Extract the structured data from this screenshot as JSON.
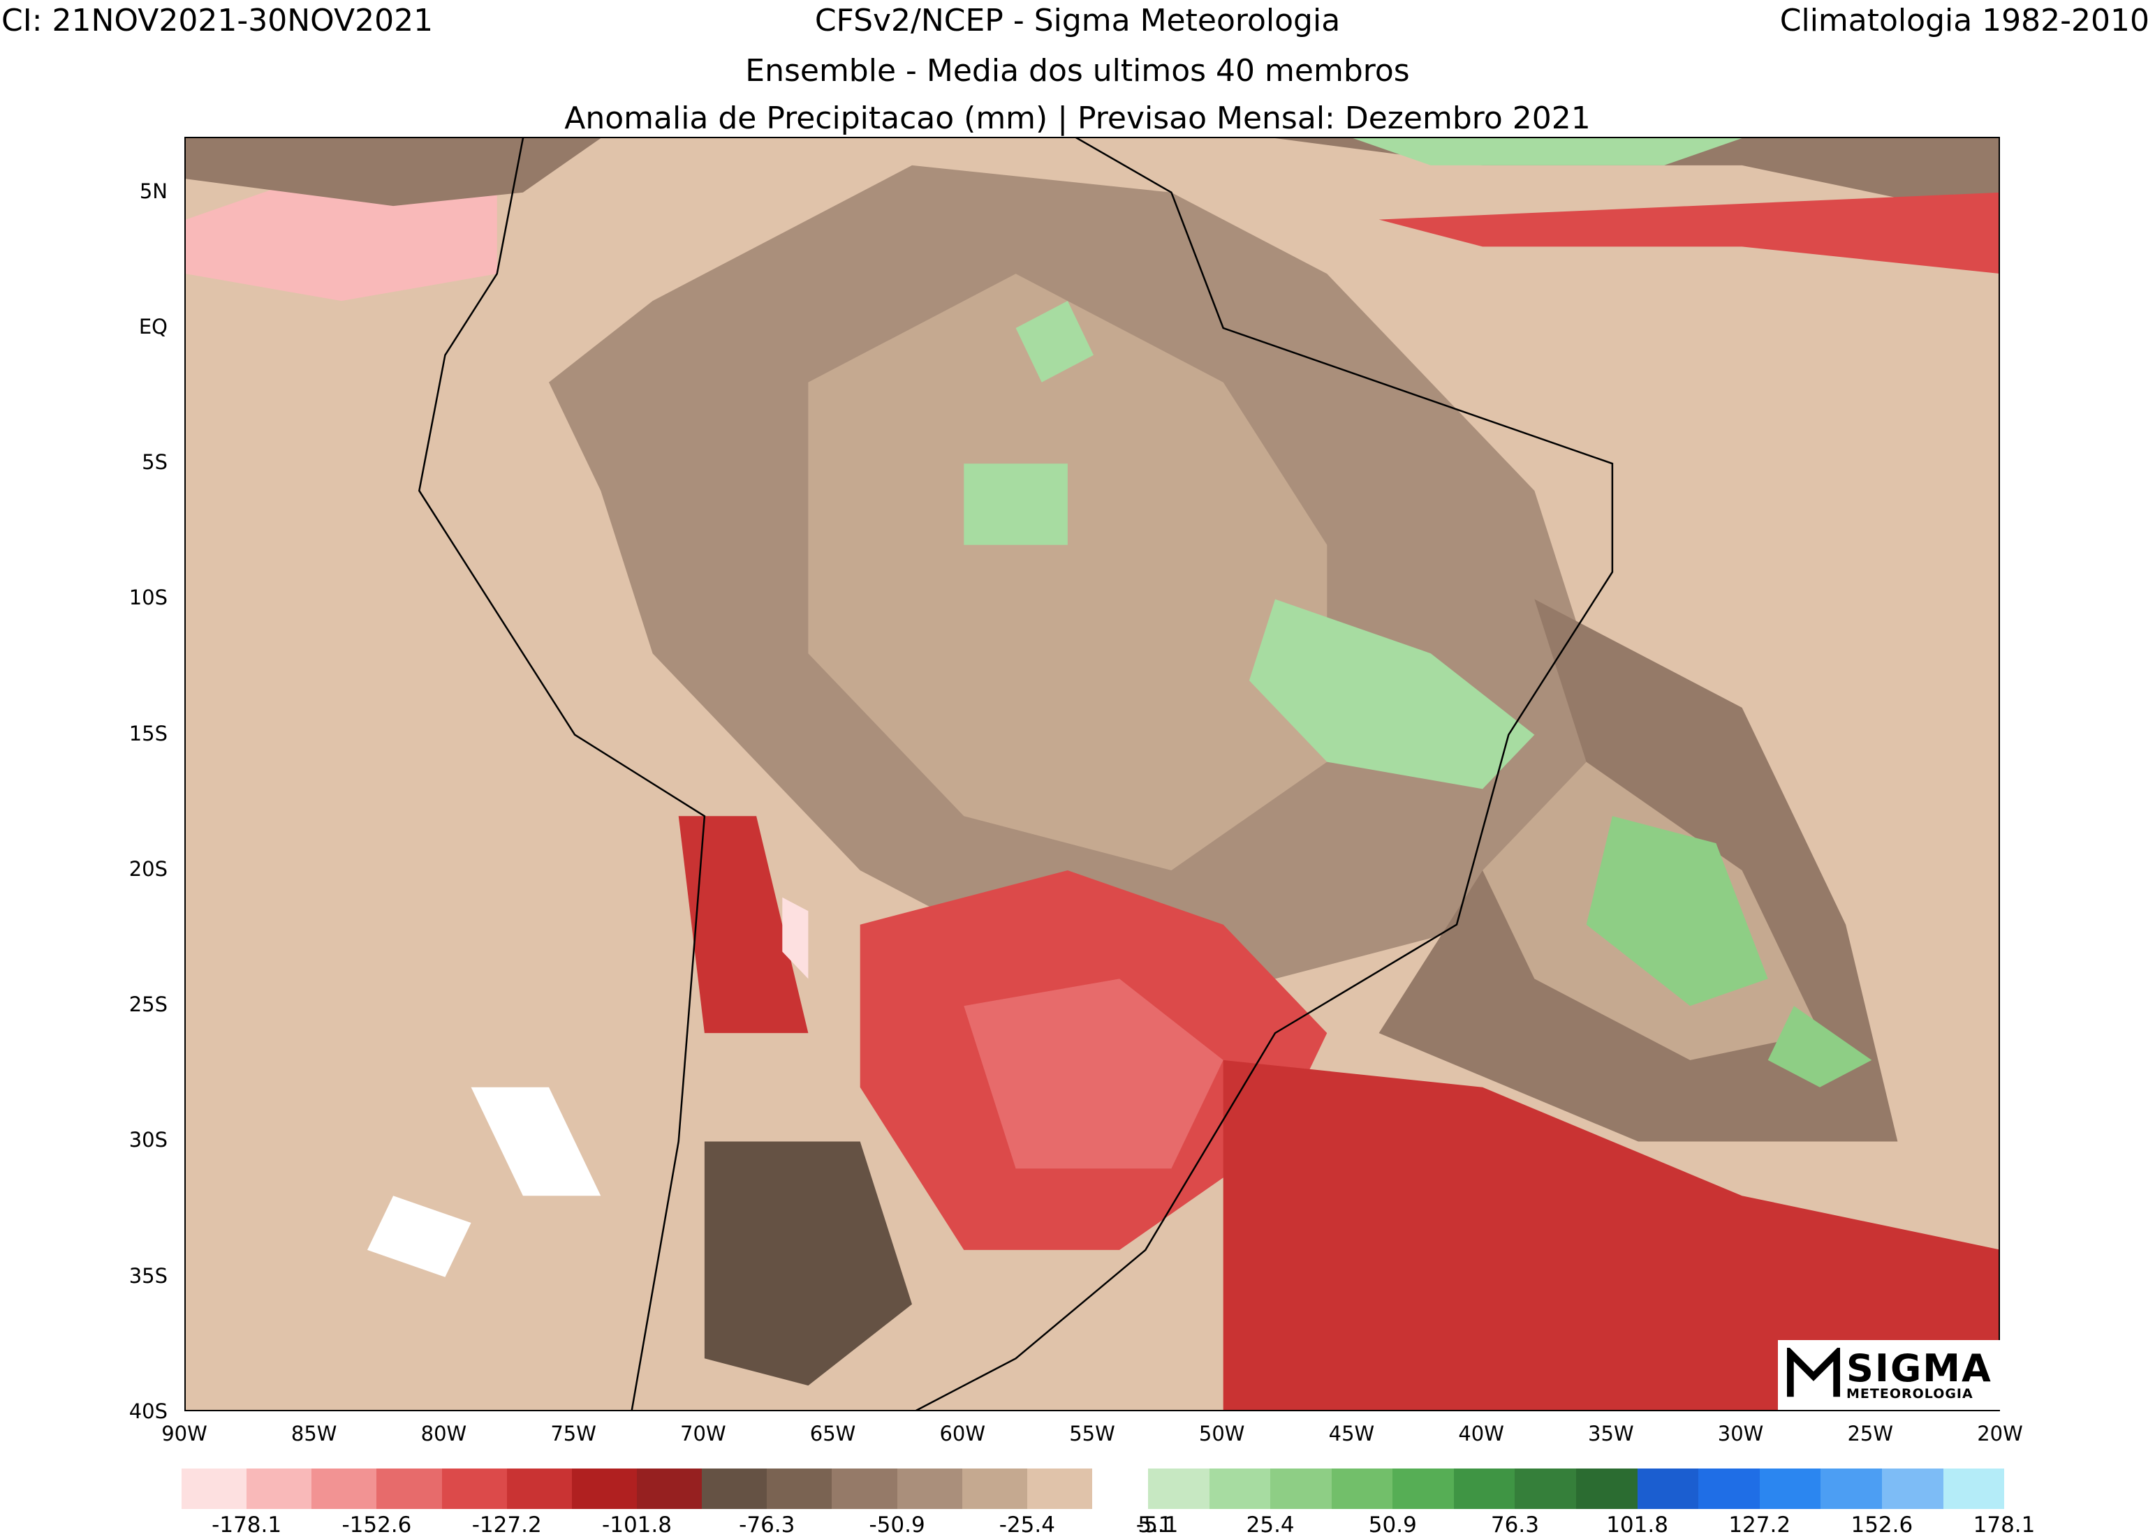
{
  "header": {
    "left": "CI: 21NOV2021-30NOV2021",
    "center": "CFSv2/NCEP - Sigma Meteorologia",
    "right": "Climatologia 1982-2010",
    "line2": "Ensemble - Media dos ultimos 40 membros",
    "line3": "Anomalia de Precipitacao (mm) | Previsao Mensal: Dezembro 2021"
  },
  "map": {
    "lon_range": [
      -90,
      -20
    ],
    "lat_range": [
      -40,
      7
    ],
    "lat_ticks": [
      "5N",
      "EQ",
      "5S",
      "10S",
      "15S",
      "20S",
      "25S",
      "30S",
      "35S",
      "40S"
    ],
    "lon_ticks": [
      "90W",
      "85W",
      "80W",
      "75W",
      "70W",
      "65W",
      "60W",
      "55W",
      "50W",
      "45W",
      "40W",
      "35W",
      "30W",
      "25W",
      "20W"
    ],
    "ocean_color": "#e0c3aa",
    "regions": [
      {
        "label": "dry-pacific-high",
        "class": 2,
        "points": [
          [
            -90,
            4
          ],
          [
            -84,
            6
          ],
          [
            -78,
            6.5
          ],
          [
            -78,
            2
          ],
          [
            -84,
            1
          ],
          [
            -90,
            2
          ]
        ]
      },
      {
        "label": "wet-pacific-nw",
        "class": 11,
        "points": [
          [
            -90,
            7
          ],
          [
            -74,
            7
          ],
          [
            -77,
            5
          ],
          [
            -82,
            4.5
          ],
          [
            -90,
            5.5
          ]
        ]
      },
      {
        "label": "amazon-wet",
        "class": 12,
        "points": [
          [
            -72,
            1
          ],
          [
            -62,
            6
          ],
          [
            -52,
            5
          ],
          [
            -46,
            2
          ],
          [
            -42,
            -2
          ],
          [
            -38,
            -6
          ],
          [
            -36,
            -12
          ],
          [
            -34,
            -20
          ],
          [
            -40,
            -22
          ],
          [
            -48,
            -24
          ],
          [
            -54,
            -22
          ],
          [
            -60,
            -22
          ],
          [
            -64,
            -20
          ],
          [
            -68,
            -16
          ],
          [
            -72,
            -12
          ],
          [
            -74,
            -6
          ],
          [
            -76,
            -2
          ]
        ]
      },
      {
        "label": "amazon-core",
        "class": 13,
        "points": [
          [
            -66,
            -2
          ],
          [
            -58,
            2
          ],
          [
            -50,
            -2
          ],
          [
            -46,
            -8
          ],
          [
            -46,
            -16
          ],
          [
            -52,
            -20
          ],
          [
            -60,
            -18
          ],
          [
            -66,
            -12
          ]
        ]
      },
      {
        "label": "atlantic-wet",
        "class": 11,
        "points": [
          [
            -38,
            -10
          ],
          [
            -30,
            -14
          ],
          [
            -26,
            -22
          ],
          [
            -24,
            -30
          ],
          [
            -34,
            -30
          ],
          [
            -44,
            -26
          ],
          [
            -40,
            -20
          ],
          [
            -36,
            -16
          ]
        ]
      },
      {
        "label": "atlantic-wet-core",
        "class": 13,
        "points": [
          [
            -36,
            -16
          ],
          [
            -30,
            -20
          ],
          [
            -27,
            -26
          ],
          [
            -32,
            -27
          ],
          [
            -38,
            -24
          ],
          [
            -40,
            -20
          ]
        ]
      },
      {
        "label": "atlantic-heavy-1",
        "class": 17,
        "points": [
          [
            -35,
            -18
          ],
          [
            -31,
            -19
          ],
          [
            -29,
            -24
          ],
          [
            -32,
            -25
          ],
          [
            -36,
            -22
          ]
        ]
      },
      {
        "label": "atlantic-heavy-2",
        "class": 17,
        "points": [
          [
            -28,
            -25
          ],
          [
            -25,
            -27
          ],
          [
            -27,
            -28
          ],
          [
            -29,
            -27
          ]
        ]
      },
      {
        "label": "amazon-heavy-1",
        "class": 16,
        "points": [
          [
            -58,
            0
          ],
          [
            -56,
            1
          ],
          [
            -55,
            -1
          ],
          [
            -57,
            -2
          ]
        ]
      },
      {
        "label": "amazon-heavy-2",
        "class": 16,
        "points": [
          [
            -60,
            -5
          ],
          [
            -56,
            -5
          ],
          [
            -56,
            -8
          ],
          [
            -60,
            -8
          ]
        ]
      },
      {
        "label": "central-heavy",
        "class": 16,
        "points": [
          [
            -48,
            -10
          ],
          [
            -42,
            -12
          ],
          [
            -38,
            -15
          ],
          [
            -40,
            -17
          ],
          [
            -46,
            -16
          ],
          [
            -49,
            -13
          ]
        ]
      },
      {
        "label": "southern-dry",
        "class": 5,
        "points": [
          [
            -64,
            -22
          ],
          [
            -56,
            -20
          ],
          [
            -50,
            -22
          ],
          [
            -46,
            -26
          ],
          [
            -48,
            -30
          ],
          [
            -54,
            -34
          ],
          [
            -60,
            -34
          ],
          [
            -64,
            -28
          ]
        ]
      },
      {
        "label": "southern-dry-core",
        "class": 4,
        "points": [
          [
            -60,
            -25
          ],
          [
            -54,
            -24
          ],
          [
            -50,
            -27
          ],
          [
            -52,
            -31
          ],
          [
            -58,
            -31
          ]
        ]
      },
      {
        "label": "andes-dry",
        "class": 6,
        "points": [
          [
            -71,
            -18
          ],
          [
            -68,
            -18
          ],
          [
            -66,
            -26
          ],
          [
            -70,
            -26
          ]
        ]
      },
      {
        "label": "andes-red",
        "class": 1,
        "points": [
          [
            -67,
            -21
          ],
          [
            -66,
            -21.5
          ],
          [
            -66,
            -24
          ],
          [
            -67,
            -23
          ]
        ]
      },
      {
        "label": "pampas-wet",
        "class": 9,
        "points": [
          [
            -70,
            -30
          ],
          [
            -64,
            -30
          ],
          [
            -62,
            -36
          ],
          [
            -66,
            -39
          ],
          [
            -70,
            -38
          ]
        ]
      },
      {
        "label": "caribbean-wet",
        "class": 11,
        "points": [
          [
            -56,
            7
          ],
          [
            -20,
            7
          ],
          [
            -20,
            4
          ],
          [
            -30,
            6
          ],
          [
            -40,
            6
          ],
          [
            -48,
            7
          ]
        ]
      },
      {
        "label": "caribbean-heavy",
        "class": 16,
        "points": [
          [
            -45,
            7
          ],
          [
            -30,
            7
          ],
          [
            -33,
            6
          ],
          [
            -42,
            6
          ]
        ]
      },
      {
        "label": "atlantic-dry",
        "class": 5,
        "points": [
          [
            -44,
            4
          ],
          [
            -20,
            5
          ],
          [
            -20,
            2
          ],
          [
            -30,
            3
          ],
          [
            -40,
            3
          ]
        ]
      },
      {
        "label": "south-atlantic-dry",
        "class": 6,
        "points": [
          [
            -50,
            -27
          ],
          [
            -40,
            -28
          ],
          [
            -30,
            -32
          ],
          [
            -20,
            -34
          ],
          [
            -20,
            -40
          ],
          [
            -50,
            -40
          ]
        ]
      },
      {
        "label": "pacific-white-1",
        "class": 0,
        "points": [
          [
            -79,
            -28
          ],
          [
            -76,
            -28
          ],
          [
            -74,
            -32
          ],
          [
            -77,
            -32
          ]
        ]
      },
      {
        "label": "pacific-white-2",
        "class": 0,
        "points": [
          [
            -82,
            -32
          ],
          [
            -79,
            -33
          ],
          [
            -80,
            -35
          ],
          [
            -83,
            -34
          ]
        ]
      }
    ]
  },
  "colorbar": {
    "left_colors": [
      "#fde0e0",
      "#f9b9b9",
      "#f29393",
      "#e76b6b",
      "#dc4a4a",
      "#c93333",
      "#b02020",
      "#962020",
      "#655244",
      "#7a6352",
      "#957a68",
      "#aa8f7b",
      "#c5a990",
      "#e0c3aa"
    ],
    "right_colors": [
      "#c7e8c2",
      "#a7dca1",
      "#8ece85",
      "#72bf6a",
      "#56ae55",
      "#3f9544",
      "#357f3a",
      "#2b6c31",
      "#1b5ed0",
      "#1f6ee6",
      "#2b86f0",
      "#4c9ef3",
      "#7dbcf6",
      "#b4ecf8"
    ],
    "left_labels": [
      "-178.1",
      "-152.6",
      "-127.2",
      "-101.8",
      "-76.3",
      "-50.9",
      "-25.4",
      "-5.1"
    ],
    "right_labels": [
      "5.1",
      "25.4",
      "50.9",
      "76.3",
      "101.8",
      "127.2",
      "152.6",
      "178.1"
    ]
  },
  "logo": {
    "title": "SIGMA",
    "subtitle": "METEOROLOGIA"
  }
}
